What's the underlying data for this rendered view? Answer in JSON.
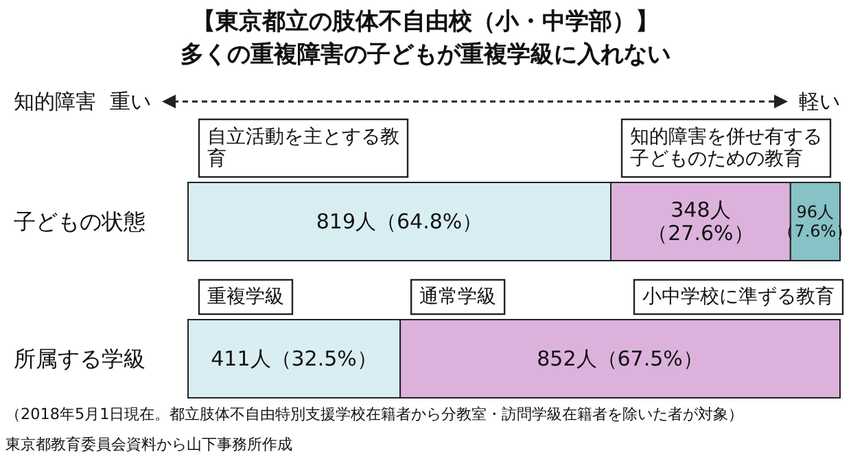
{
  "chart_data": {
    "type": "bar",
    "orientation": "horizontal",
    "stacked": true,
    "title": "【東京都立の肢体不自由校（小・中学部）】",
    "subtitle": "多くの重複障害の子どもが重複学級に入れない",
    "categories": [
      "子どもの状態",
      "所属する学級"
    ],
    "series": [
      {
        "color": "#d8eef2",
        "values": [
          819,
          411
        ],
        "value_labels": [
          "819人（64.8%）",
          "411人（32.5%）"
        ]
      },
      {
        "color": "#dcb2dc",
        "values": [
          348,
          852
        ],
        "value_labels": [
          "348人（27.6%）",
          "852人（67.5%）"
        ]
      },
      {
        "color": "#86c2c6",
        "values": [
          96,
          null
        ],
        "value_labels": [
          "96人（7.6%）",
          null
        ]
      }
    ],
    "annotations": [
      "知的障害",
      "重い",
      "軽い",
      {
        "text": "自立活動を主とする教育",
        "x": 0,
        "y": "子どもの状態"
      },
      {
        "text": "知的障害を併せ有する子どものための教育",
        "x": 819,
        "y": "子どもの状態"
      },
      "小中学校に準ずる教育",
      {
        "text": "重複学級",
        "x": 0,
        "y": "所属する学級"
      },
      {
        "text": "通常学級",
        "x": 411,
        "y": "所属する学級"
      },
      "（2018年5月1日現在。都立肢体不自由特別支援学校在籍者から分教室・訪問学級在籍者を除いた者が対象）",
      "東京都教育委員会資料から山下事務所作成"
    ]
  }
}
